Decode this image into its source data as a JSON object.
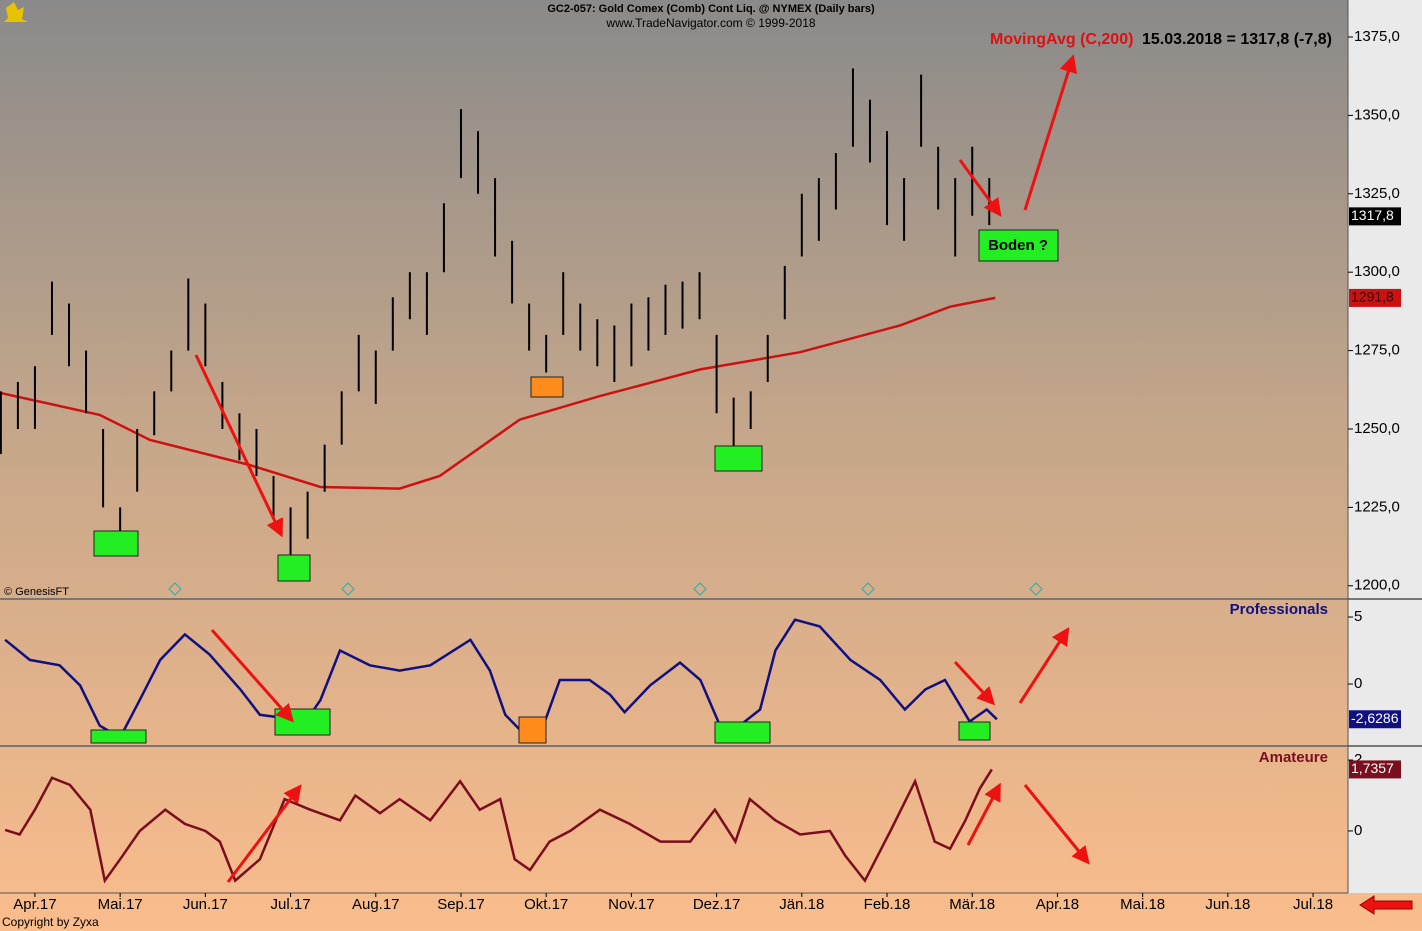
{
  "chart_data": [
    {
      "type": "range-bar",
      "title": "GC2-057:  Gold Comex (Comb) Cont Liq. @ NYMEX  (Daily bars)",
      "subtitle": "www.TradeNavigator.com © 1999-2018",
      "status": "15.03.2018 = 1317,8 (-7,8)",
      "annotation": "Boden ?",
      "source": "© GenesisFT",
      "footer": "Copyright by Zyxa",
      "color": "#000000",
      "x": [
        -0.4,
        -0.2,
        0,
        0.2,
        0.4,
        0.6,
        0.8,
        1,
        1.2,
        1.4,
        1.6,
        1.8,
        2,
        2.2,
        2.4,
        2.6,
        2.8,
        3,
        3.2,
        3.4,
        3.6,
        3.8,
        4,
        4.2,
        4.4,
        4.6,
        4.8,
        5,
        5.2,
        5.4,
        5.6,
        5.8,
        6,
        6.2,
        6.4,
        6.6,
        6.8,
        7,
        7.2,
        7.4,
        7.6,
        7.8,
        8,
        8.2,
        8.4,
        8.6,
        8.8,
        9,
        9.2,
        9.4,
        9.6,
        9.8,
        10,
        10.2,
        10.4,
        10.6,
        10.8,
        11,
        11.2
      ],
      "high": [
        1262,
        1265,
        1270,
        1297,
        1290,
        1275,
        1250,
        1225,
        1250,
        1262,
        1275,
        1298,
        1290,
        1265,
        1255,
        1250,
        1235,
        1225,
        1230,
        1245,
        1262,
        1280,
        1275,
        1292,
        1300,
        1300,
        1322,
        1352,
        1345,
        1330,
        1310,
        1290,
        1280,
        1300,
        1290,
        1285,
        1283,
        1290,
        1292,
        1296,
        1297,
        1300,
        1280,
        1260,
        1262,
        1280,
        1302,
        1325,
        1330,
        1338,
        1365,
        1355,
        1345,
        1330,
        1363,
        1340,
        1330,
        1340,
        1330
      ],
      "low": [
        1242,
        1250,
        1250,
        1280,
        1270,
        1255,
        1225,
        1215,
        1230,
        1248,
        1262,
        1275,
        1270,
        1250,
        1240,
        1235,
        1222,
        1205,
        1215,
        1230,
        1245,
        1262,
        1258,
        1275,
        1285,
        1280,
        1300,
        1330,
        1325,
        1305,
        1290,
        1275,
        1268,
        1280,
        1275,
        1270,
        1265,
        1270,
        1275,
        1280,
        1282,
        1285,
        1255,
        1240,
        1250,
        1265,
        1285,
        1305,
        1310,
        1320,
        1340,
        1335,
        1315,
        1310,
        1340,
        1320,
        1305,
        1318,
        1315
      ],
      "last_value": {
        "value": 1317.8,
        "label": "1317,8"
      },
      "overlay": {
        "name": "MovingAvg (C,200)",
        "color": "#cc1111",
        "x": [
          -0.41,
          0.76,
          1.35,
          2.52,
          3.35,
          4.28,
          4.75,
          5.69,
          6.63,
          7.81,
          8.98,
          10.15,
          10.74,
          11.27
        ],
        "values": [
          1261.5,
          1254.5,
          1246.5,
          1238.5,
          1231.5,
          1231,
          1235,
          1253,
          1260.5,
          1269,
          1274.5,
          1283,
          1289,
          1291.8
        ],
        "last_value": {
          "value": 1291.8,
          "label": "1291,8"
        }
      },
      "xlim": [
        -0.41,
        15.41
      ],
      "xticks": [
        {
          "value": 0,
          "label": "Apr.17"
        },
        {
          "value": 1,
          "label": "Mai.17"
        },
        {
          "value": 2,
          "label": "Jun.17"
        },
        {
          "value": 3,
          "label": "Jul.17"
        },
        {
          "value": 4,
          "label": "Aug.17"
        },
        {
          "value": 5,
          "label": "Sep.17"
        },
        {
          "value": 6,
          "label": "Okt.17"
        },
        {
          "value": 7,
          "label": "Nov.17"
        },
        {
          "value": 8,
          "label": "Dez.17"
        },
        {
          "value": 9,
          "label": "Jän.18"
        },
        {
          "value": 10,
          "label": "Feb.18"
        },
        {
          "value": 11,
          "label": "Mär.18"
        },
        {
          "value": 12,
          "label": "Apr.18"
        },
        {
          "value": 13,
          "label": "Mai.18"
        },
        {
          "value": 14,
          "label": "Jun.18"
        },
        {
          "value": 15,
          "label": "Jul.18"
        }
      ],
      "ylim": [
        1196.1,
        1386.8
      ],
      "yticks": [
        {
          "value": 1200,
          "label": "1200,0"
        },
        {
          "value": 1225,
          "label": "1225,0"
        },
        {
          "value": 1250,
          "label": "1250,0"
        },
        {
          "value": 1275,
          "label": "1275,0"
        },
        {
          "value": 1300,
          "label": "1300,0"
        },
        {
          "value": 1325,
          "label": "1325,0"
        },
        {
          "value": 1350,
          "label": "1350,0"
        },
        {
          "value": 1375,
          "label": "1375,0"
        }
      ]
    },
    {
      "type": "line",
      "xlim": [
        -0.41,
        15.41
      ],
      "ylim": [
        -4.55,
        6.27
      ],
      "yticks": [
        0,
        5
      ],
      "series": [
        {
          "name": "Professionals",
          "color": "#101080",
          "x": [
            -0.35,
            -0.06,
            0.29,
            0.53,
            0.76,
            1.0,
            1.23,
            1.47,
            1.76,
            2.05,
            2.41,
            2.64,
            2.88,
            3.11,
            3.35,
            3.58,
            3.93,
            4.28,
            4.64,
            5.11,
            5.34,
            5.52,
            5.75,
            5.99,
            6.16,
            6.51,
            6.75,
            6.92,
            7.22,
            7.57,
            7.81,
            8.04,
            8.27,
            8.51,
            8.69,
            8.92,
            9.21,
            9.57,
            9.92,
            10.21,
            10.45,
            10.68,
            10.97,
            11.17,
            11.29
          ],
          "values": [
            3.3,
            1.8,
            1.4,
            -0.1,
            -3.1,
            -4.0,
            -1.2,
            1.8,
            3.7,
            2.2,
            -0.4,
            -2.3,
            -2.5,
            -3.4,
            -1.2,
            2.5,
            1.4,
            1.0,
            1.4,
            3.3,
            1.0,
            -2.3,
            -3.8,
            -2.7,
            0.3,
            0.3,
            -0.8,
            -2.1,
            -0.1,
            1.6,
            0.3,
            -3.1,
            -3.1,
            -1.9,
            2.5,
            4.8,
            4.3,
            1.8,
            0.3,
            -1.9,
            -0.4,
            0.3,
            -2.8,
            -1.9,
            -2.6286
          ],
          "last_value": {
            "value": -2.6286,
            "label": "-2,6286"
          }
        }
      ]
    },
    {
      "type": "line",
      "xlim": [
        -0.41,
        15.41
      ],
      "ylim": [
        -1.75,
        2.34
      ],
      "yticks": [
        0,
        2
      ],
      "series": [
        {
          "name": "Amateure",
          "color": "#7a0e1e",
          "x": [
            -0.35,
            -0.18,
            0,
            0.2,
            0.41,
            0.65,
            0.82,
            1.0,
            1.23,
            1.53,
            1.76,
            2.0,
            2.17,
            2.35,
            2.64,
            2.93,
            3.23,
            3.58,
            3.76,
            4.05,
            4.28,
            4.64,
            4.99,
            5.22,
            5.46,
            5.63,
            5.81,
            6.04,
            6.28,
            6.63,
            6.98,
            7.34,
            7.69,
            7.98,
            8.22,
            8.39,
            8.69,
            8.98,
            9.33,
            9.51,
            9.74,
            10.04,
            10.33,
            10.56,
            10.74,
            10.92,
            11.09,
            11.23
          ],
          "values": [
            0.03,
            -0.1,
            0.6,
            1.5,
            1.3,
            0.6,
            -1.4,
            -0.8,
            0,
            0.6,
            0.2,
            0,
            -0.3,
            -1.4,
            -0.8,
            0.9,
            0.6,
            0.3,
            1.0,
            0.5,
            0.9,
            0.3,
            1.4,
            0.6,
            0.9,
            -0.8,
            -1.1,
            -0.3,
            0,
            0.6,
            0.2,
            -0.3,
            -0.3,
            0.6,
            -0.3,
            0.9,
            0.3,
            -0.1,
            0,
            -0.7,
            -1.4,
            0,
            1.4,
            -0.3,
            -0.5,
            0.3,
            1.2,
            1.7357
          ],
          "last_value": {
            "value": 1.7357,
            "label": "1,7357"
          }
        }
      ]
    }
  ]
}
